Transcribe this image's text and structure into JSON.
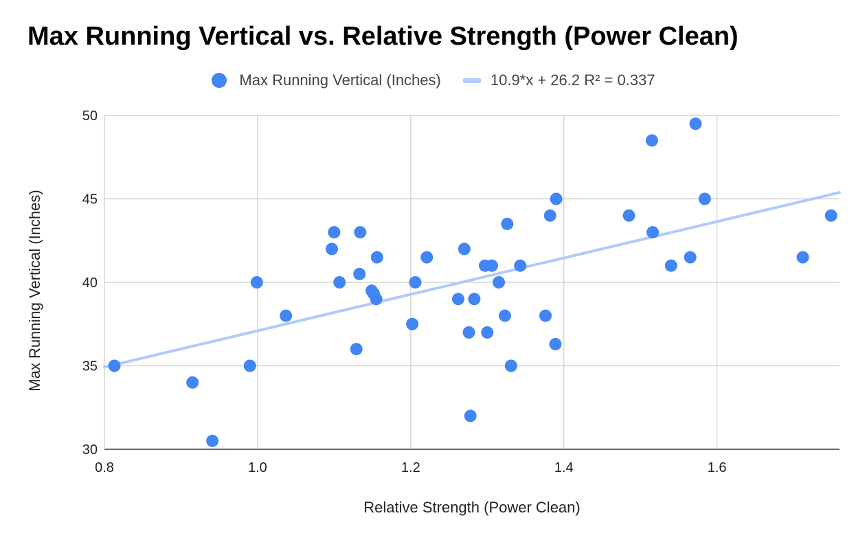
{
  "chart_data": {
    "type": "scatter",
    "title": "Max Running Vertical vs. Relative Strength (Power Clean)",
    "xlabel": "Relative Strength (Power Clean)",
    "ylabel": "Max Running Vertical (Inches)",
    "xlim": [
      0.8,
      1.76
    ],
    "ylim": [
      30,
      50
    ],
    "x_ticks": [
      0.8,
      1.0,
      1.2,
      1.4,
      1.6
    ],
    "x_tick_labels": [
      "0.8",
      "1.0",
      "1.2",
      "1.4",
      "1.6"
    ],
    "y_ticks": [
      30,
      35,
      40,
      45,
      50
    ],
    "y_tick_labels": [
      "30",
      "35",
      "40",
      "45",
      "50"
    ],
    "grid": true,
    "legend_position": "top-center",
    "series": [
      {
        "name": "Max Running Vertical (Inches)",
        "color": "#4285F4",
        "points": [
          [
            0.813,
            35
          ],
          [
            0.915,
            34
          ],
          [
            0.941,
            30.5
          ],
          [
            0.99,
            35
          ],
          [
            0.999,
            40
          ],
          [
            1.037,
            38
          ],
          [
            1.097,
            42
          ],
          [
            1.1,
            43
          ],
          [
            1.107,
            40
          ],
          [
            1.129,
            36
          ],
          [
            1.133,
            40.5
          ],
          [
            1.134,
            43
          ],
          [
            1.149,
            39.5
          ],
          [
            1.152,
            39.3
          ],
          [
            1.155,
            39
          ],
          [
            1.156,
            41.5
          ],
          [
            1.202,
            37.5
          ],
          [
            1.206,
            40
          ],
          [
            1.221,
            41.5
          ],
          [
            1.262,
            39
          ],
          [
            1.27,
            42
          ],
          [
            1.276,
            37
          ],
          [
            1.278,
            32
          ],
          [
            1.283,
            39
          ],
          [
            1.297,
            41
          ],
          [
            1.3,
            37
          ],
          [
            1.306,
            41
          ],
          [
            1.315,
            40
          ],
          [
            1.323,
            38
          ],
          [
            1.326,
            43.5
          ],
          [
            1.331,
            35
          ],
          [
            1.343,
            41
          ],
          [
            1.376,
            38
          ],
          [
            1.382,
            44
          ],
          [
            1.389,
            36.3
          ],
          [
            1.39,
            45
          ],
          [
            1.485,
            44
          ],
          [
            1.515,
            48.5
          ],
          [
            1.516,
            43
          ],
          [
            1.54,
            41
          ],
          [
            1.565,
            41.5
          ],
          [
            1.572,
            49.5
          ],
          [
            1.584,
            45
          ],
          [
            1.712,
            41.5
          ],
          [
            1.749,
            44
          ]
        ]
      }
    ],
    "trendline": {
      "name": "10.9*x + 26.2 R² = 0.337",
      "slope": 10.9,
      "intercept": 26.2,
      "color": "#AECBFA"
    }
  }
}
